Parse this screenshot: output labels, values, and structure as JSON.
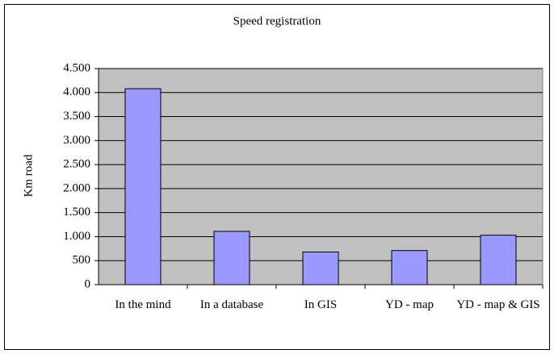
{
  "chart_data": {
    "type": "bar",
    "title": "Speed registration",
    "y_label": "Km road",
    "categories": [
      "In the mind",
      "In a database",
      "In GIS",
      "YD - map",
      "YD - map & GIS"
    ],
    "values": [
      4080,
      1110,
      680,
      710,
      1030
    ],
    "color": "#9999ff",
    "ylim": [
      0,
      4500
    ],
    "yticks": [
      0,
      500,
      {
        "value": 1000,
        "label": "1.000"
      },
      {
        "value": 1500,
        "label": "1.500"
      },
      {
        "value": 2000,
        "label": "2.000"
      },
      {
        "value": 2500,
        "label": "2.500"
      },
      {
        "value": 3000,
        "label": "3.000"
      },
      {
        "value": 3500,
        "label": "3.500"
      },
      {
        "value": 4000,
        "label": "4.000"
      },
      {
        "value": 4500,
        "label": "4.500"
      }
    ],
    "grid": true
  }
}
